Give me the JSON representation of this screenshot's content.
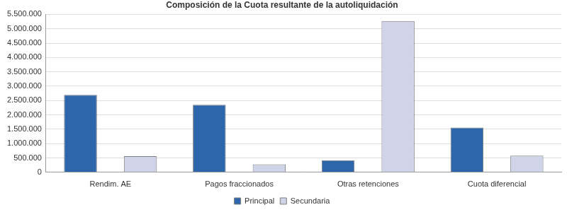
{
  "chart_data": {
    "type": "bar",
    "title": "Composición de la Cuota resultante de la autoliquidación",
    "categories": [
      "Rendim. AE",
      "Pagos fraccionados",
      "Otras retenciones",
      "Cuota diferencial"
    ],
    "series": [
      {
        "name": "Principal",
        "color": "#2e66ac",
        "values": [
          2700000,
          2350000,
          420000,
          1560000
        ]
      },
      {
        "name": "Secundaria",
        "color": "#d0d4e8",
        "values": [
          560000,
          280000,
          5270000,
          580000
        ]
      }
    ],
    "ylim": [
      0,
      5500000
    ],
    "yticks": [
      0,
      {
        "value": 500000,
        "label": "500.000"
      },
      {
        "value": 1000000,
        "label": "1.000.000"
      },
      {
        "value": 1500000,
        "label": "1.500.000"
      },
      {
        "value": 2000000,
        "label": "2.000.000"
      },
      {
        "value": 2500000,
        "label": "2.500.000"
      },
      {
        "value": 3000000,
        "label": "3.000.000"
      },
      {
        "value": 3500000,
        "label": "3.500.000"
      },
      {
        "value": 4000000,
        "label": "4.000.000"
      },
      {
        "value": 4500000,
        "label": "4.500.000"
      },
      {
        "value": 5000000,
        "label": "5.000.000"
      },
      {
        "value": 5500000,
        "label": "5.500.000"
      }
    ],
    "grid": true,
    "legend": "bottom"
  }
}
